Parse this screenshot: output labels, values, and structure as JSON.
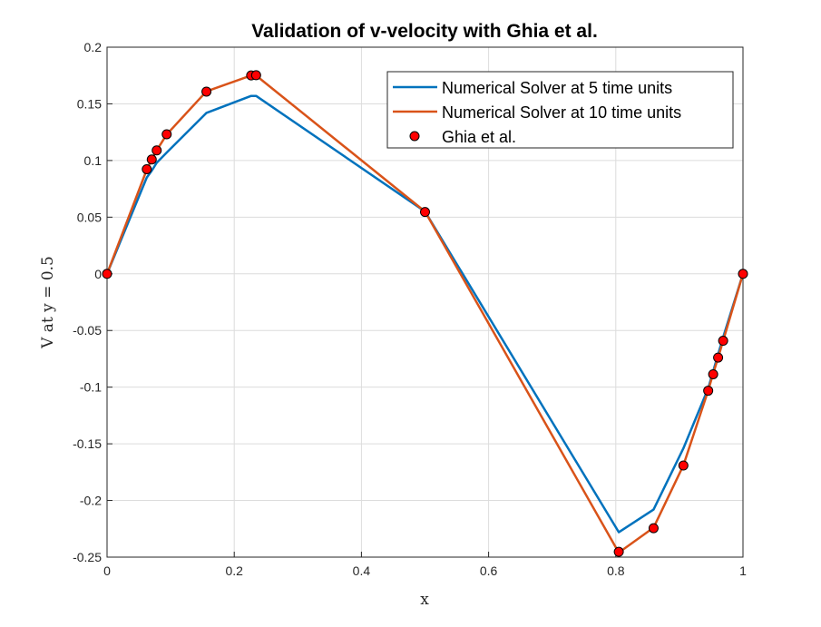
{
  "chart_data": {
    "type": "line",
    "title": "Validation of v-velocity with Ghia et al.",
    "xlabel": "x",
    "ylabel": "V at y = 0.5",
    "xlim": [
      0,
      1
    ],
    "ylim": [
      -0.25,
      0.2
    ],
    "grid": true,
    "legend_position": "top-right",
    "x_ticks": [
      "0",
      "0.2",
      "0.4",
      "0.6",
      "0.8",
      "1"
    ],
    "y_ticks": [
      "-0.25",
      "-0.2",
      "-0.15",
      "-0.1",
      "-0.05",
      "0",
      "0.05",
      "0.1",
      "0.15",
      "0.2"
    ],
    "series": [
      {
        "name": "Numerical Solver at 5 time units",
        "style": "line",
        "color": "#0072BD",
        "x": [
          0,
          0.0625,
          0.0703,
          0.0781,
          0.0938,
          0.1563,
          0.2266,
          0.2344,
          0.5,
          0.8047,
          0.8594,
          0.9063,
          0.9453,
          0.9531,
          0.9609,
          0.9688,
          1.0
        ],
        "y": [
          0,
          0.085,
          0.091,
          0.098,
          0.107,
          0.142,
          0.157,
          0.157,
          0.055,
          -0.228,
          -0.208,
          -0.154,
          -0.101,
          -0.086,
          -0.071,
          -0.056,
          0
        ]
      },
      {
        "name": "Numerical Solver at 10 time units",
        "style": "line",
        "color": "#D95319",
        "x": [
          0,
          0.0625,
          0.0703,
          0.0781,
          0.0938,
          0.1563,
          0.2266,
          0.2344,
          0.5,
          0.8047,
          0.8594,
          0.9063,
          0.9453,
          0.9531,
          0.9609,
          0.9688,
          1.0
        ],
        "y": [
          0,
          0.092,
          0.101,
          0.109,
          0.123,
          0.161,
          0.175,
          0.175,
          0.055,
          -0.246,
          -0.224,
          -0.169,
          -0.103,
          -0.088,
          -0.074,
          -0.059,
          0
        ]
      },
      {
        "name": "Ghia et al.",
        "style": "marker",
        "color": "#FF0000",
        "x": [
          0,
          0.0625,
          0.0703,
          0.0781,
          0.0938,
          0.1563,
          0.2266,
          0.2344,
          0.5,
          0.8047,
          0.8594,
          0.9063,
          0.9453,
          0.9531,
          0.9609,
          0.9688,
          1.0
        ],
        "y": [
          0,
          0.09233,
          0.10091,
          0.1089,
          0.12317,
          0.16077,
          0.17507,
          0.17527,
          0.05454,
          -0.24533,
          -0.22445,
          -0.16914,
          -0.10313,
          -0.08864,
          -0.07391,
          -0.05906,
          0
        ]
      }
    ]
  }
}
